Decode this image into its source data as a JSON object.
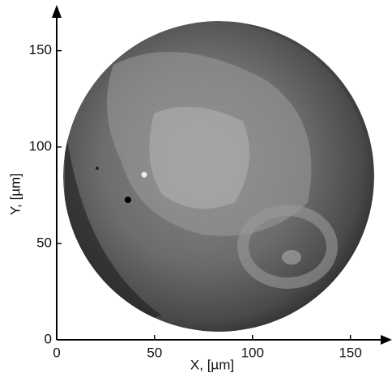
{
  "chart_data": {
    "type": "image",
    "xlabel": "X, [µm]",
    "ylabel": "Y, [µm]",
    "xlim": [
      0,
      170
    ],
    "ylim": [
      0,
      170
    ],
    "xticks": [
      0,
      50,
      100,
      150
    ],
    "yticks": [
      0,
      50,
      100,
      150
    ]
  }
}
